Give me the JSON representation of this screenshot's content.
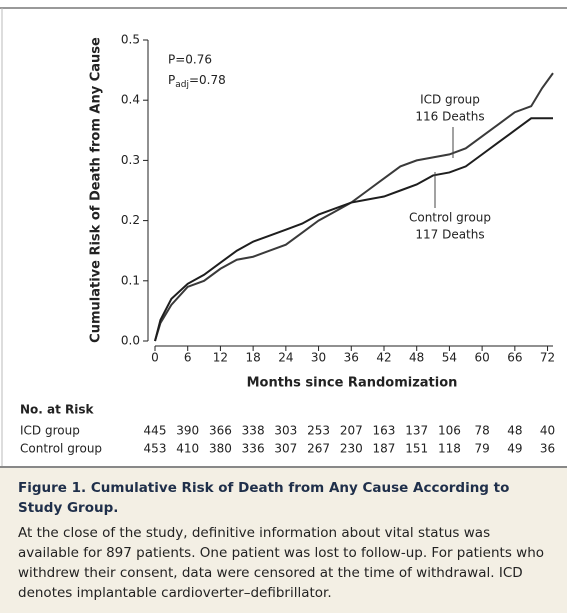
{
  "chart_data": {
    "type": "line",
    "y_label": "Cumulative Risk of Death from Any Cause",
    "x_label": "Months since Randomization",
    "annotations": {
      "p": "P=0.76",
      "p_adj_symbol": "P",
      "p_adj_subscript": "adj",
      "p_adj_rest": "=0.78"
    },
    "xlim": [
      0,
      73
    ],
    "xticks": [
      0,
      6,
      12,
      18,
      24,
      30,
      36,
      42,
      48,
      54,
      60,
      66,
      72
    ],
    "ylim": [
      0,
      0.5
    ],
    "yticks": [
      {
        "value": 0,
        "label": "0.0"
      },
      0.1,
      0.2,
      0.3,
      0.4,
      0.5
    ],
    "x": [
      0,
      1,
      3,
      6,
      9,
      12,
      15,
      18,
      21,
      24,
      27,
      30,
      33,
      36,
      39,
      42,
      45,
      48,
      51,
      54,
      57,
      60,
      63,
      66,
      69,
      71,
      73
    ],
    "series": [
      {
        "name": "ICD group",
        "deaths": "116 Deaths",
        "color": "#3a3a3a",
        "values": [
          0,
          0.03,
          0.06,
          0.09,
          0.1,
          0.12,
          0.135,
          0.14,
          0.15,
          0.16,
          0.18,
          0.2,
          0.215,
          0.23,
          0.25,
          0.27,
          0.29,
          0.3,
          0.305,
          0.31,
          0.32,
          0.34,
          0.36,
          0.38,
          0.39,
          0.42,
          0.445
        ]
      },
      {
        "name": "Control group",
        "deaths": "117 Deaths",
        "color": "#1e1e1e",
        "values": [
          0,
          0.035,
          0.07,
          0.095,
          0.11,
          0.13,
          0.15,
          0.165,
          0.175,
          0.185,
          0.195,
          0.21,
          0.22,
          0.23,
          0.235,
          0.24,
          0.25,
          0.26,
          0.275,
          0.28,
          0.29,
          0.31,
          0.33,
          0.35,
          0.37,
          0.37,
          0.37
        ]
      }
    ]
  },
  "risk_table": {
    "title": "No. at Risk",
    "rows": [
      {
        "label": "ICD group",
        "counts": [
          445,
          390,
          366,
          338,
          303,
          253,
          207,
          163,
          137,
          106,
          78,
          48,
          40
        ]
      },
      {
        "label": "Control group",
        "counts": [
          453,
          410,
          380,
          336,
          307,
          267,
          230,
          187,
          151,
          118,
          79,
          49,
          36
        ]
      }
    ]
  },
  "caption": {
    "figure": "Figure 1.",
    "title": "Cumulative Risk of Death from Any Cause According to Study Group.",
    "body": "At the close of the study, definitive information about vital status was available for 897 patients. One patient was lost to follow-up. For patients who withdrew their consent, data were censored at the time of withdrawal. ICD denotes implantable cardioverter–defibrillator."
  }
}
